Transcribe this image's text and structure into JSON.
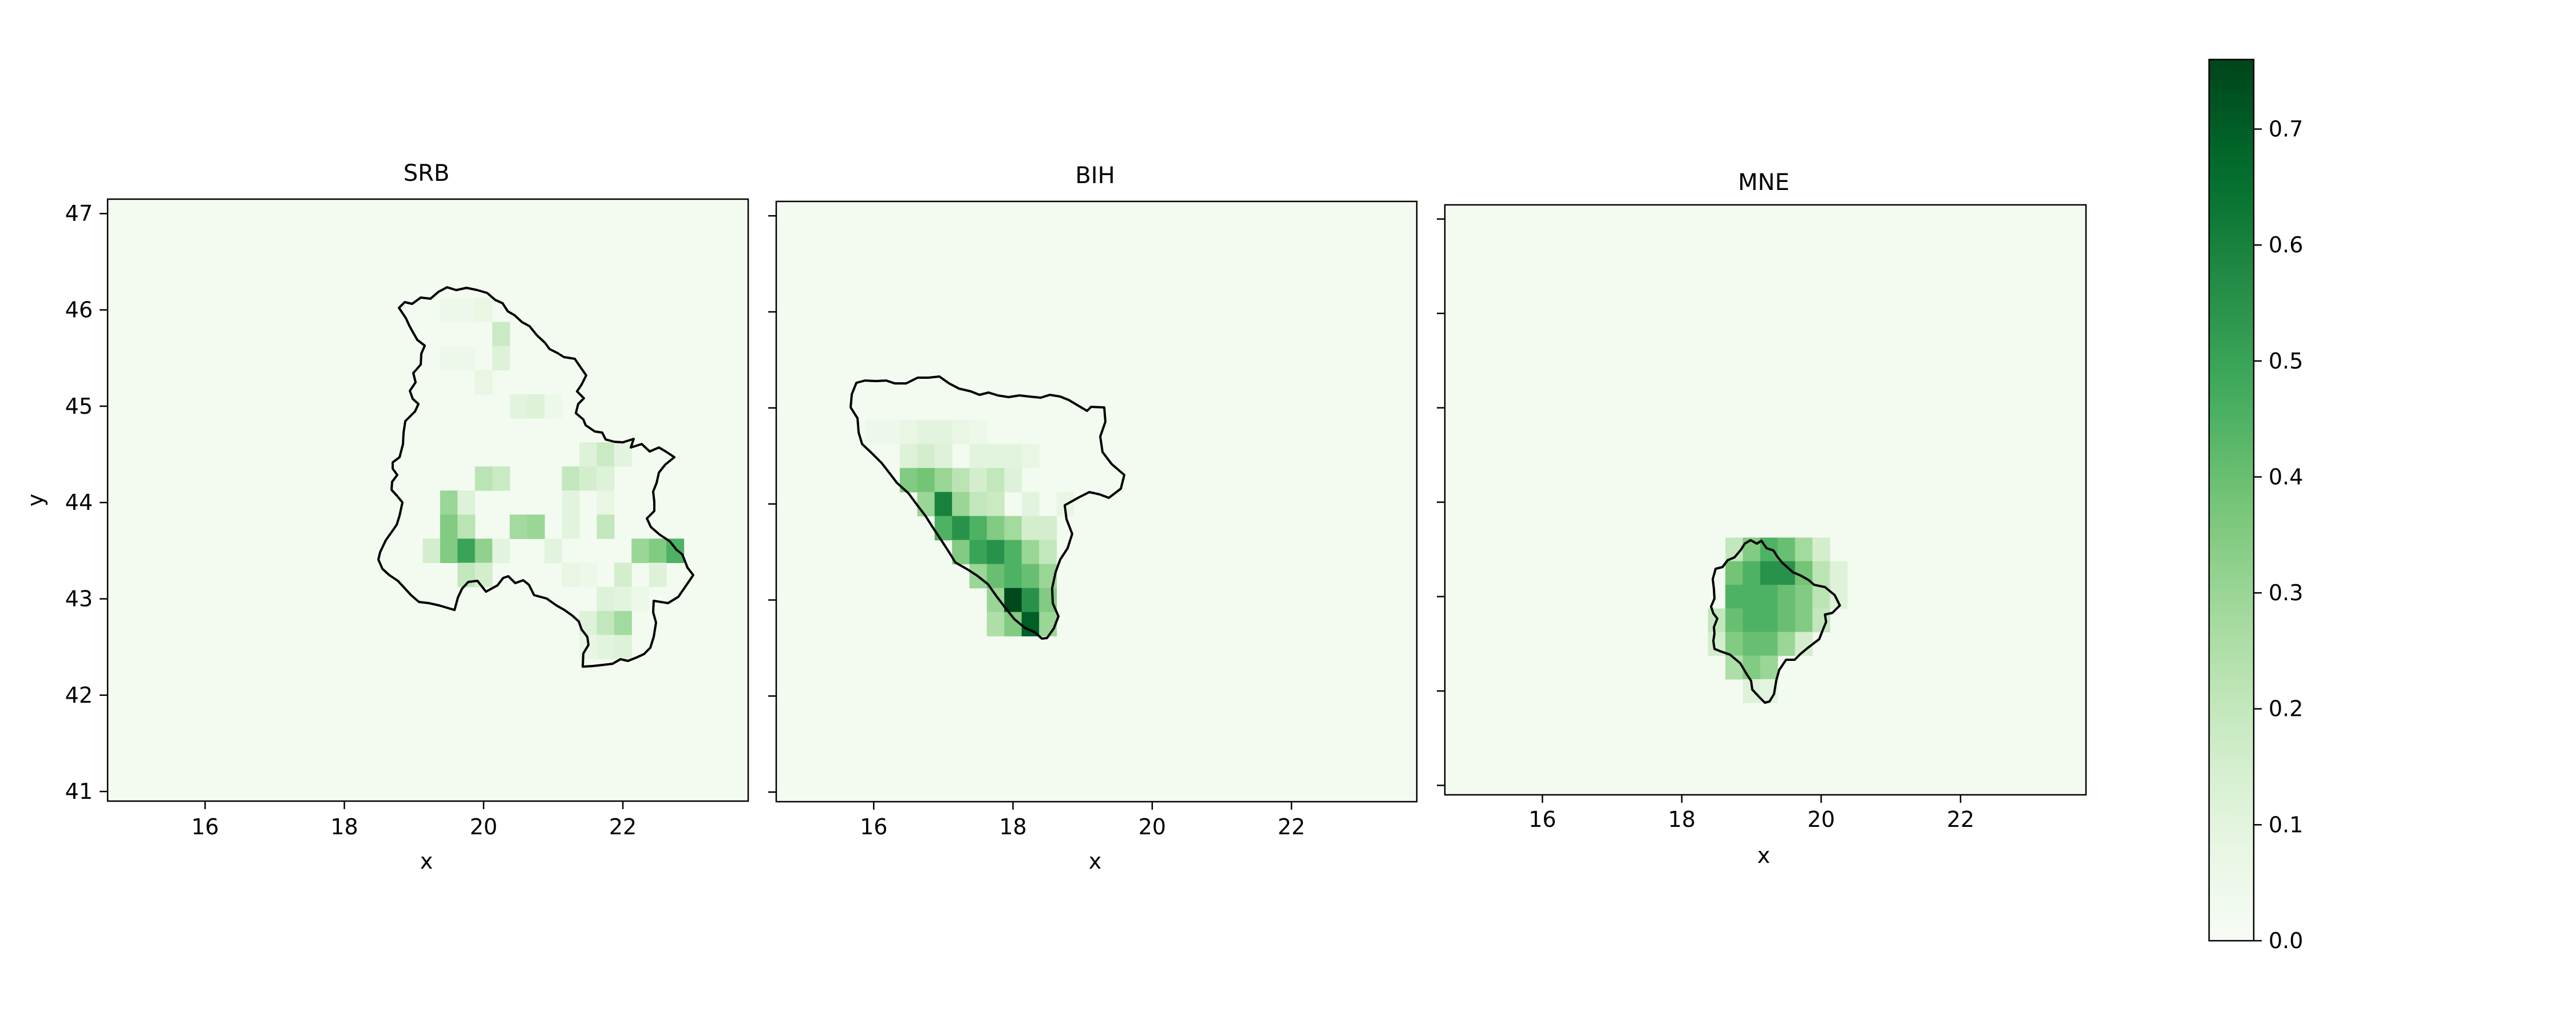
{
  "chart_data": {
    "type": "heatmap",
    "colormap": "Greens",
    "panels": [
      {
        "title": "SRB",
        "xlabel": "x",
        "ylabel": "y",
        "xlim": [
          14.6,
          23.8
        ],
        "ylim": [
          40.9,
          47.15
        ],
        "xticks": [
          16,
          18,
          20,
          22
        ],
        "yticks": [
          41,
          42,
          43,
          44,
          45,
          46,
          47
        ],
        "ytick_labels_shown": true,
        "cell_size": 0.25,
        "cells": [
          [
            19.5,
            46.0,
            0.05
          ],
          [
            19.75,
            46.0,
            0.05
          ],
          [
            20.0,
            46.0,
            0.08
          ],
          [
            20.25,
            45.75,
            0.18
          ],
          [
            19.5,
            45.5,
            0.05
          ],
          [
            19.75,
            45.5,
            0.05
          ],
          [
            20.25,
            45.5,
            0.12
          ],
          [
            20.0,
            45.25,
            0.08
          ],
          [
            20.5,
            45.0,
            0.1
          ],
          [
            20.75,
            45.0,
            0.12
          ],
          [
            21.0,
            45.0,
            0.06
          ],
          [
            21.5,
            44.5,
            0.12
          ],
          [
            21.75,
            44.5,
            0.18
          ],
          [
            22.0,
            44.5,
            0.1
          ],
          [
            20.0,
            44.25,
            0.22
          ],
          [
            20.25,
            44.25,
            0.18
          ],
          [
            21.25,
            44.25,
            0.2
          ],
          [
            21.5,
            44.25,
            0.15
          ],
          [
            21.75,
            44.25,
            0.12
          ],
          [
            19.5,
            44.0,
            0.3
          ],
          [
            19.75,
            44.0,
            0.12
          ],
          [
            21.25,
            44.0,
            0.1
          ],
          [
            21.75,
            44.0,
            0.08
          ],
          [
            19.5,
            43.75,
            0.35
          ],
          [
            19.75,
            43.75,
            0.22
          ],
          [
            20.5,
            43.75,
            0.28
          ],
          [
            20.75,
            43.75,
            0.3
          ],
          [
            21.25,
            43.75,
            0.1
          ],
          [
            21.75,
            43.75,
            0.2
          ],
          [
            19.25,
            43.5,
            0.15
          ],
          [
            19.5,
            43.5,
            0.35
          ],
          [
            19.75,
            43.5,
            0.5
          ],
          [
            20.0,
            43.5,
            0.32
          ],
          [
            20.25,
            43.5,
            0.1
          ],
          [
            21.0,
            43.5,
            0.1
          ],
          [
            22.25,
            43.5,
            0.3
          ],
          [
            22.5,
            43.5,
            0.35
          ],
          [
            22.75,
            43.5,
            0.45
          ],
          [
            19.75,
            43.25,
            0.2
          ],
          [
            20.0,
            43.25,
            0.15
          ],
          [
            21.25,
            43.25,
            0.08
          ],
          [
            21.5,
            43.25,
            0.06
          ],
          [
            22.0,
            43.25,
            0.15
          ],
          [
            22.5,
            43.25,
            0.12
          ],
          [
            21.75,
            43.0,
            0.12
          ],
          [
            22.0,
            43.0,
            0.1
          ],
          [
            22.25,
            43.0,
            0.06
          ],
          [
            21.5,
            42.75,
            0.12
          ],
          [
            21.75,
            42.75,
            0.2
          ],
          [
            22.0,
            42.75,
            0.28
          ],
          [
            21.5,
            42.5,
            0.08
          ],
          [
            21.75,
            42.5,
            0.1
          ],
          [
            22.0,
            42.5,
            0.12
          ]
        ]
      },
      {
        "title": "BIH",
        "xlabel": "x",
        "xlim": [
          14.6,
          23.8
        ],
        "ylim": [
          40.9,
          47.15
        ],
        "xticks": [
          16,
          18,
          20,
          22
        ],
        "yticks": [
          41,
          42,
          43,
          44,
          45,
          46,
          47
        ],
        "ytick_labels_shown": false,
        "cell_size": 0.25,
        "cells": [
          [
            16.0,
            44.75,
            0.05
          ],
          [
            16.25,
            44.75,
            0.05
          ],
          [
            16.5,
            44.75,
            0.08
          ],
          [
            16.75,
            44.75,
            0.1
          ],
          [
            17.0,
            44.75,
            0.1
          ],
          [
            17.25,
            44.75,
            0.08
          ],
          [
            17.5,
            44.75,
            0.06
          ],
          [
            16.5,
            44.5,
            0.12
          ],
          [
            16.75,
            44.5,
            0.15
          ],
          [
            17.0,
            44.5,
            0.12
          ],
          [
            17.5,
            44.5,
            0.1
          ],
          [
            17.75,
            44.5,
            0.1
          ],
          [
            18.0,
            44.5,
            0.1
          ],
          [
            18.25,
            44.5,
            0.08
          ],
          [
            16.5,
            44.25,
            0.35
          ],
          [
            16.75,
            44.25,
            0.38
          ],
          [
            17.0,
            44.25,
            0.3
          ],
          [
            17.25,
            44.25,
            0.22
          ],
          [
            17.5,
            44.25,
            0.15
          ],
          [
            17.75,
            44.25,
            0.2
          ],
          [
            18.0,
            44.25,
            0.12
          ],
          [
            16.75,
            44.0,
            0.3
          ],
          [
            17.0,
            44.0,
            0.6
          ],
          [
            17.25,
            44.0,
            0.3
          ],
          [
            17.5,
            44.0,
            0.2
          ],
          [
            17.75,
            44.0,
            0.18
          ],
          [
            18.25,
            44.0,
            0.1
          ],
          [
            18.75,
            44.0,
            0.08
          ],
          [
            17.0,
            43.75,
            0.45
          ],
          [
            17.25,
            43.75,
            0.55
          ],
          [
            17.5,
            43.75,
            0.45
          ],
          [
            17.75,
            43.75,
            0.35
          ],
          [
            18.0,
            43.75,
            0.28
          ],
          [
            18.25,
            43.75,
            0.15
          ],
          [
            18.5,
            43.75,
            0.15
          ],
          [
            17.25,
            43.5,
            0.35
          ],
          [
            17.5,
            43.5,
            0.5
          ],
          [
            17.75,
            43.5,
            0.55
          ],
          [
            18.0,
            43.5,
            0.45
          ],
          [
            18.25,
            43.5,
            0.3
          ],
          [
            18.5,
            43.5,
            0.2
          ],
          [
            17.5,
            43.25,
            0.3
          ],
          [
            17.75,
            43.25,
            0.4
          ],
          [
            18.0,
            43.25,
            0.45
          ],
          [
            18.25,
            43.25,
            0.4
          ],
          [
            18.5,
            43.25,
            0.3
          ],
          [
            17.75,
            43.0,
            0.3
          ],
          [
            18.0,
            43.0,
            0.75
          ],
          [
            18.25,
            43.0,
            0.55
          ],
          [
            18.5,
            43.0,
            0.35
          ],
          [
            17.75,
            42.75,
            0.25
          ],
          [
            18.0,
            42.75,
            0.35
          ],
          [
            18.25,
            42.75,
            0.7
          ],
          [
            18.5,
            42.75,
            0.3
          ]
        ]
      },
      {
        "title": "MNE",
        "xlabel": "x",
        "xlim": [
          14.6,
          23.8
        ],
        "ylim": [
          40.9,
          47.15
        ],
        "xticks": [
          16,
          18,
          20,
          22
        ],
        "yticks": [
          41,
          42,
          43,
          44,
          45,
          46,
          47
        ],
        "ytick_labels_shown": false,
        "cell_size": 0.25,
        "cells": [
          [
            18.75,
            43.5,
            0.2
          ],
          [
            19.0,
            43.5,
            0.35
          ],
          [
            19.25,
            43.5,
            0.45
          ],
          [
            19.5,
            43.5,
            0.4
          ],
          [
            19.75,
            43.5,
            0.28
          ],
          [
            20.0,
            43.5,
            0.15
          ],
          [
            18.75,
            43.25,
            0.38
          ],
          [
            19.0,
            43.25,
            0.45
          ],
          [
            19.25,
            43.25,
            0.55
          ],
          [
            19.5,
            43.25,
            0.55
          ],
          [
            19.75,
            43.25,
            0.38
          ],
          [
            20.0,
            43.25,
            0.22
          ],
          [
            20.25,
            43.25,
            0.12
          ],
          [
            18.75,
            43.0,
            0.45
          ],
          [
            19.0,
            43.0,
            0.45
          ],
          [
            19.25,
            43.0,
            0.45
          ],
          [
            19.5,
            43.0,
            0.4
          ],
          [
            19.75,
            43.0,
            0.35
          ],
          [
            20.0,
            43.0,
            0.22
          ],
          [
            20.25,
            43.0,
            0.12
          ],
          [
            18.5,
            42.75,
            0.2
          ],
          [
            18.75,
            42.75,
            0.4
          ],
          [
            19.0,
            42.75,
            0.45
          ],
          [
            19.25,
            42.75,
            0.45
          ],
          [
            19.5,
            42.75,
            0.4
          ],
          [
            19.75,
            42.75,
            0.35
          ],
          [
            20.0,
            42.75,
            0.2
          ],
          [
            18.5,
            42.5,
            0.15
          ],
          [
            18.75,
            42.5,
            0.35
          ],
          [
            19.0,
            42.5,
            0.4
          ],
          [
            19.25,
            42.5,
            0.4
          ],
          [
            19.5,
            42.5,
            0.3
          ],
          [
            19.75,
            42.5,
            0.15
          ],
          [
            18.75,
            42.25,
            0.25
          ],
          [
            19.0,
            42.25,
            0.35
          ],
          [
            19.25,
            42.25,
            0.3
          ],
          [
            19.0,
            42.0,
            0.12
          ],
          [
            19.25,
            42.0,
            0.1
          ]
        ]
      }
    ],
    "colorbar": {
      "min": 0.0,
      "max": 0.76,
      "ticks": [
        0.0,
        0.1,
        0.2,
        0.3,
        0.4,
        0.5,
        0.6,
        0.7
      ],
      "tick_labels": [
        "0.0",
        "0.1",
        "0.2",
        "0.3",
        "0.4",
        "0.5",
        "0.6",
        "0.7"
      ]
    },
    "background_value": 0.02,
    "grid": false
  },
  "colors": {
    "axes_edge": "#000000",
    "outline": "#000000"
  }
}
